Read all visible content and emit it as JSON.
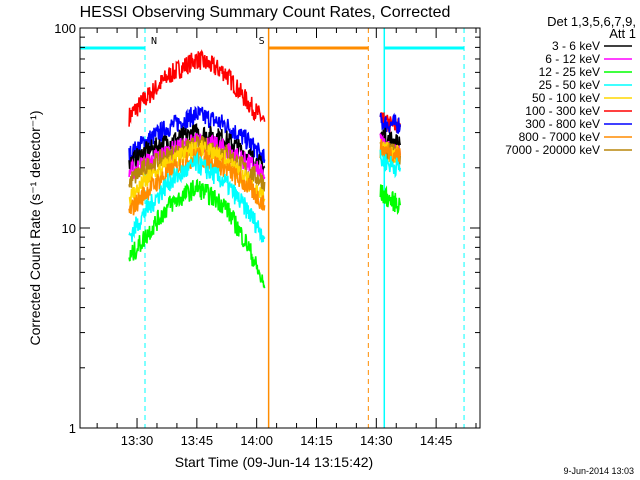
{
  "chart_data": {
    "type": "line",
    "title": "HESSI Observing Summary Count Rates, Corrected",
    "xlabel": "Start Time (09-Jun-14 13:15:42)",
    "ylabel": "Corrected Count Rate (s⁻¹ detector⁻¹)",
    "yscale": "log",
    "xlim": [
      "13:15:42",
      "14:56:00"
    ],
    "ylim": [
      1,
      100
    ],
    "x_ticks": [
      "13:30",
      "13:45",
      "14:00",
      "14:15",
      "14:30",
      "14:45"
    ],
    "y_ticks": [
      "1",
      "10",
      "100"
    ],
    "legend_header": [
      "Det 1,3,5,6,7,9,",
      "Att 1"
    ],
    "legend_position": "right",
    "series": [
      {
        "name": "3 - 6 keV",
        "color": "#000000",
        "x": [
          "13:28",
          "13:32",
          "13:38",
          "13:45",
          "13:52",
          "13:58",
          "14:02",
          "14:31",
          "14:33",
          "14:36"
        ],
        "values": [
          21,
          24,
          27,
          30,
          28,
          23,
          20,
          29,
          28,
          26
        ]
      },
      {
        "name": "6 - 12 keV",
        "color": "#ff00ff",
        "x": [
          "13:28",
          "13:32",
          "13:38",
          "13:45",
          "13:52",
          "13:58",
          "14:02",
          "14:31",
          "14:33",
          "14:36"
        ],
        "values": [
          19,
          21,
          24,
          27,
          25,
          21,
          18,
          27,
          25,
          23
        ]
      },
      {
        "name": "12 - 25 keV",
        "color": "#00ff00",
        "x": [
          "13:28",
          "13:32",
          "13:38",
          "13:45",
          "13:52",
          "13:58",
          "14:02",
          "14:31",
          "14:33",
          "14:36"
        ],
        "values": [
          7,
          9,
          13,
          16,
          13,
          8,
          5,
          15,
          14,
          13
        ]
      },
      {
        "name": "25 - 50 keV",
        "color": "#00ffff",
        "x": [
          "13:28",
          "13:32",
          "13:38",
          "13:45",
          "13:52",
          "13:58",
          "14:02",
          "14:31",
          "14:33",
          "14:36"
        ],
        "values": [
          9,
          12,
          17,
          21,
          17,
          12,
          9,
          22,
          21,
          20
        ]
      },
      {
        "name": "50 - 100 keV",
        "color": "#ffd700",
        "x": [
          "13:28",
          "13:32",
          "13:38",
          "13:45",
          "13:52",
          "13:58",
          "14:02",
          "14:31",
          "14:33",
          "14:36"
        ],
        "values": [
          14,
          17,
          21,
          25,
          22,
          17,
          14,
          25,
          24,
          23
        ]
      },
      {
        "name": "100 - 300 keV",
        "color": "#ff0000",
        "x": [
          "13:28",
          "13:32",
          "13:38",
          "13:45",
          "13:52",
          "13:58",
          "14:02",
          "14:31",
          "14:33",
          "14:36"
        ],
        "values": [
          36,
          44,
          58,
          70,
          60,
          42,
          34,
          34,
          33,
          32
        ]
      },
      {
        "name": "300 - 800 keV",
        "color": "#0000ff",
        "x": [
          "13:28",
          "13:32",
          "13:38",
          "13:45",
          "13:52",
          "13:58",
          "14:02",
          "14:31",
          "14:33",
          "14:36"
        ],
        "values": [
          23,
          27,
          32,
          37,
          33,
          27,
          22,
          34,
          33,
          33
        ]
      },
      {
        "name": "800 - 7000 keV",
        "color": "#ff8c00",
        "x": [
          "13:28",
          "13:32",
          "13:38",
          "13:45",
          "13:52",
          "13:58",
          "14:02",
          "14:31",
          "14:33",
          "14:36"
        ],
        "values": [
          12,
          15,
          19,
          23,
          20,
          16,
          13,
          25,
          24,
          23
        ]
      },
      {
        "name": "7000 - 20000 keV",
        "color": "#b8860b",
        "x": [
          "13:28",
          "13:32",
          "13:38",
          "13:45",
          "13:52",
          "13:58",
          "14:02",
          "14:31",
          "14:33",
          "14:36"
        ],
        "values": [
          17,
          20,
          23,
          26,
          24,
          19,
          17,
          25,
          24,
          23
        ]
      }
    ],
    "flags": [
      {
        "label": "N",
        "color": "#00ffff",
        "start": "13:15:42",
        "end": "13:32:00"
      },
      {
        "label": "S",
        "color": "#ff8c00",
        "start": "14:03:00",
        "end": "14:28:00"
      },
      {
        "label": "",
        "color": "#00ffff",
        "start": "14:32:00",
        "end": "14:52:00"
      }
    ]
  },
  "footer_timestamp": "9-Jun-2014 13:03"
}
